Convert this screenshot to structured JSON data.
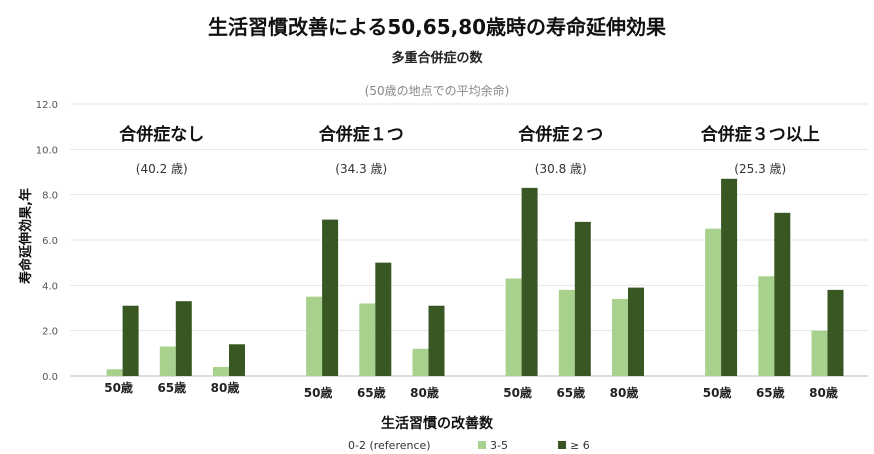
{
  "chart_data": {
    "type": "bar",
    "title": "生活習慣改善による50,65,80歳時の寿命延伸効果",
    "subtitle": "多重合併症の数",
    "note": "(50歳の地点での平均余命)",
    "ylabel": "寿命延伸効果,年",
    "xlabel": "生活習慣の改善数",
    "ylim": [
      0,
      12
    ],
    "yticks": [
      "0.0",
      "2.0",
      "4.0",
      "6.0",
      "8.0",
      "10.0",
      "12.0"
    ],
    "grid": true,
    "legend_position": "bottom",
    "colors": {
      "0-2 (reference)": "#ffffff",
      "3-5": "#a9d18e",
      "≥ 6": "#385723"
    },
    "series": [
      {
        "name": "0-2 (reference)"
      },
      {
        "name": "3-5"
      },
      {
        "name": "≥ 6"
      }
    ],
    "groups": [
      {
        "title": "合併症なし",
        "life_expectancy": "(40.2 歳)",
        "categories": [
          "50歳",
          "65歳",
          "80歳"
        ],
        "values_3_5": [
          0.3,
          1.3,
          0.4
        ],
        "values_6plus": [
          3.1,
          3.3,
          1.4
        ]
      },
      {
        "title": "合併症１つ",
        "life_expectancy": "(34.3 歳)",
        "categories": [
          "50歳",
          "65歳",
          "80歳"
        ],
        "values_3_5": [
          3.5,
          3.2,
          1.2
        ],
        "values_6plus": [
          6.9,
          5.0,
          3.1
        ]
      },
      {
        "title": "合併症２つ",
        "life_expectancy": "(30.8 歳)",
        "categories": [
          "50歳",
          "65歳",
          "80歳"
        ],
        "values_3_5": [
          4.3,
          3.8,
          3.4
        ],
        "values_6plus": [
          8.3,
          6.8,
          3.9
        ]
      },
      {
        "title": "合併症３つ以上",
        "life_expectancy": "(25.3 歳)",
        "categories": [
          "50歳",
          "65歳",
          "80歳"
        ],
        "values_3_5": [
          6.5,
          4.4,
          2.0
        ],
        "values_6plus": [
          8.7,
          7.2,
          3.8
        ]
      }
    ]
  }
}
